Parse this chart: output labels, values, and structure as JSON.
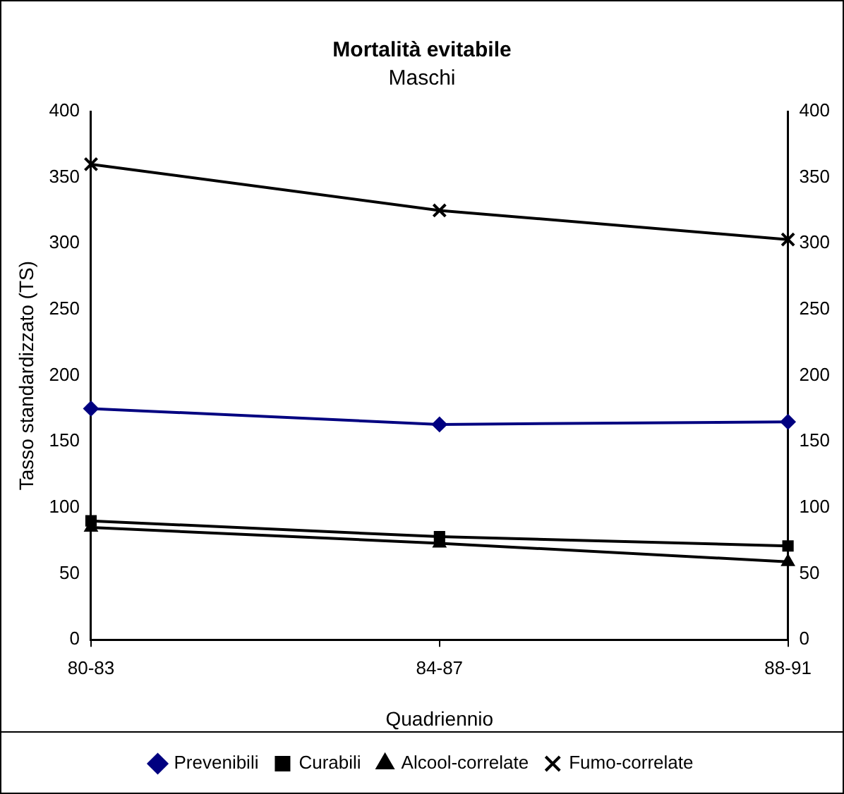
{
  "chart_data": {
    "type": "line",
    "title": "Mortalità evitabile",
    "subtitle": "Maschi",
    "xlabel": "Quadriennio",
    "ylabel": "Tasso standardizzato (TS)",
    "categories": [
      "80-83",
      "84-87",
      "88-91"
    ],
    "series": [
      {
        "name": "Prevenibili",
        "color": "#000080",
        "marker": "diamond",
        "values": [
          175,
          163,
          165
        ]
      },
      {
        "name": "Curabili",
        "color": "#000000",
        "marker": "square",
        "values": [
          90,
          78,
          71
        ]
      },
      {
        "name": "Alcool-correlate",
        "color": "#000000",
        "marker": "triangle",
        "values": [
          85,
          73,
          59
        ]
      },
      {
        "name": "Fumo-correlate",
        "color": "#000000",
        "marker": "cross",
        "values": [
          360,
          325,
          303
        ]
      }
    ],
    "ylim": [
      0,
      400
    ],
    "yticks": [
      0,
      50,
      100,
      150,
      200,
      250,
      300,
      350,
      400
    ],
    "y2lim": [
      0,
      400
    ],
    "y2ticks": [
      0,
      50,
      100,
      150,
      200,
      250,
      300,
      350,
      400
    ],
    "grid": false,
    "legend": "bottom",
    "line_style": "solid"
  }
}
